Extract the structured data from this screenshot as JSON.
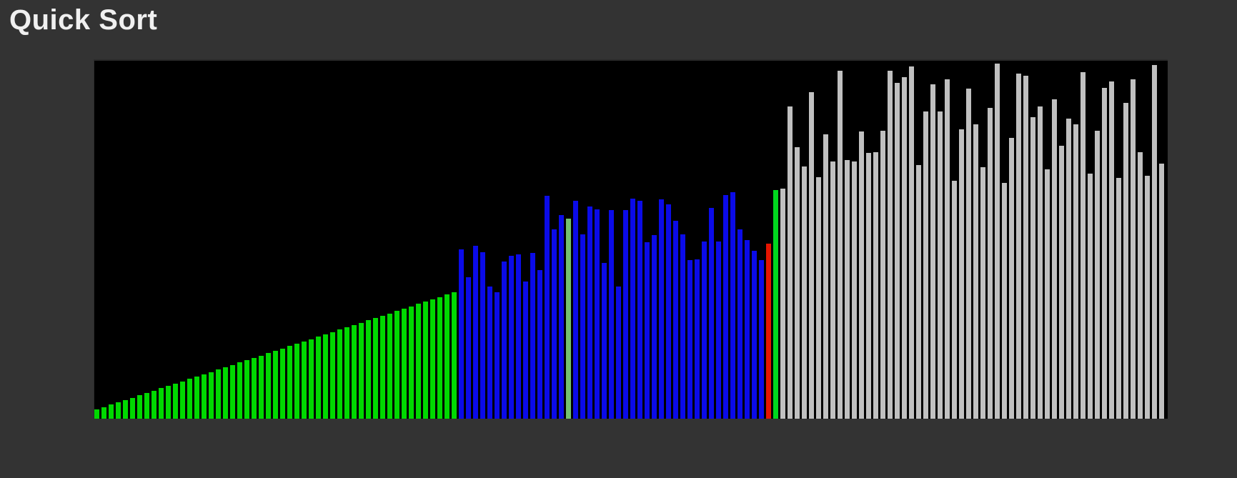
{
  "title": "Quick Sort",
  "colors": {
    "background": "#333333",
    "canvas_background": "#000000",
    "title_text": "#f0f0f0",
    "sorted": "#00d900",
    "active": "#0b0be8",
    "pivot": "#74c170",
    "marker_red": "#e51400",
    "marker_green": "#00d81e",
    "inactive": "#c0c0c0"
  },
  "bars": {
    "heights": [
      13,
      16,
      20,
      23,
      26,
      29,
      33,
      36,
      39,
      43,
      46,
      49,
      52,
      56,
      59,
      62,
      65,
      69,
      72,
      75,
      79,
      82,
      85,
      88,
      92,
      95,
      98,
      102,
      105,
      108,
      111,
      115,
      118,
      121,
      125,
      128,
      131,
      134,
      138,
      141,
      144,
      147,
      151,
      154,
      157,
      161,
      164,
      167,
      170,
      174,
      177,
      237,
      198,
      242,
      233,
      185,
      177,
      220,
      228,
      230,
      192,
      232,
      208,
      312,
      265,
      285,
      280,
      305,
      258,
      297,
      293,
      218,
      292,
      185,
      292,
      308,
      305,
      247,
      257,
      307,
      300,
      277,
      258,
      222,
      223,
      248,
      295,
      248,
      313,
      317,
      265,
      250,
      235,
      222,
      245,
      320,
      322,
      437,
      380,
      353,
      457,
      338,
      398,
      360,
      487,
      362,
      360,
      402,
      372,
      373,
      403,
      487,
      470,
      478,
      493,
      355,
      430,
      468,
      430,
      475,
      333,
      405,
      462,
      412,
      352,
      435,
      497,
      330,
      393,
      483,
      480,
      422,
      437,
      349,
      447,
      382,
      420,
      412,
      485,
      343,
      403,
      463,
      472,
      337,
      442,
      475,
      373,
      340,
      495,
      357
    ],
    "segments": [
      {
        "start": 0,
        "end": 50,
        "color": "sorted"
      },
      {
        "start": 51,
        "end": 93,
        "color": "active"
      },
      {
        "start": 94,
        "end": 94,
        "color": "marker_red"
      },
      {
        "start": 95,
        "end": 95,
        "color": "marker_green"
      },
      {
        "start": 96,
        "end": 149,
        "color": "inactive"
      }
    ],
    "pivot_index": 66
  }
}
